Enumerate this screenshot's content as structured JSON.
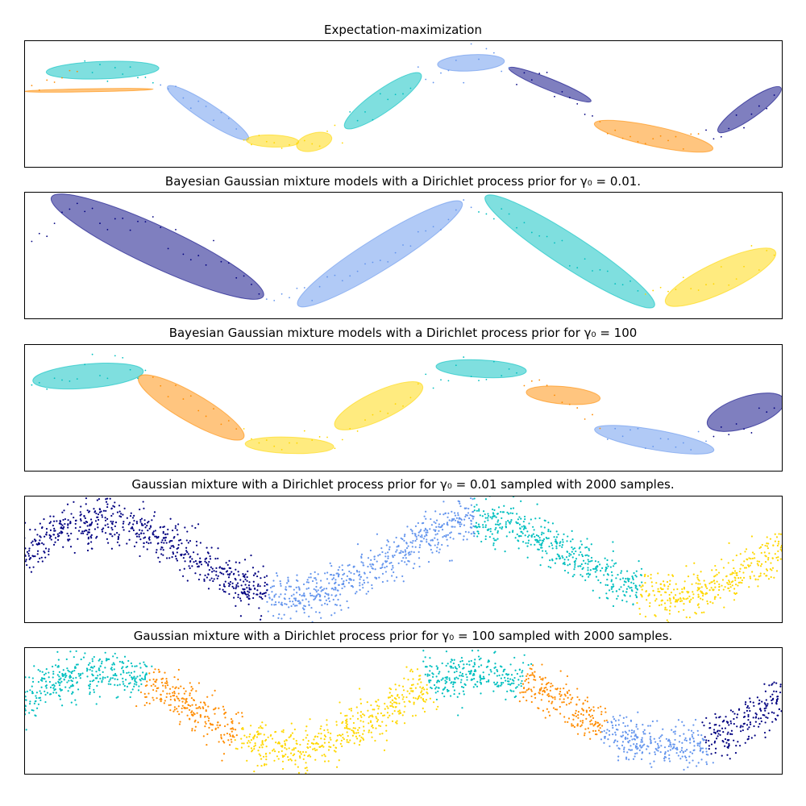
{
  "chart_data": [
    {
      "type": "scatter",
      "title": "Expectation-maximization",
      "xlim": [
        -6,
        6.566
      ],
      "ylim": [
        -5,
        5
      ],
      "grid": false,
      "ticks": false,
      "n_samples": 100,
      "ellipses": [
        {
          "center": [
            -4.7,
            2.64
          ],
          "width": 1.87,
          "height": 0.29,
          "angle": -2,
          "color": "#00bfbf"
        },
        {
          "center": [
            -4.93,
            1.05
          ],
          "width": 2.14,
          "height": 0.05,
          "angle": -1,
          "color": "#ff8c00"
        },
        {
          "center": [
            -2.95,
            -0.73
          ],
          "width": 1.6,
          "height": 0.29,
          "angle": 33,
          "color": "#6495ed"
        },
        {
          "center": [
            -1.88,
            -2.96
          ],
          "width": 0.87,
          "height": 0.2,
          "angle": 2,
          "color": "#ffd700"
        },
        {
          "center": [
            -1.19,
            -3.03
          ],
          "width": 0.6,
          "height": 0.29,
          "angle": -15,
          "color": "#ffd700"
        },
        {
          "center": [
            -0.05,
            0.22
          ],
          "width": 1.54,
          "height": 0.37,
          "angle": -35,
          "color": "#00bfbf"
        },
        {
          "center": [
            1.41,
            3.22
          ],
          "width": 1.11,
          "height": 0.27,
          "angle": -3,
          "color": "#6495ed"
        },
        {
          "center": [
            2.72,
            1.5
          ],
          "width": 1.47,
          "height": 0.19,
          "angle": 22,
          "color": "#000080"
        },
        {
          "center": [
            4.44,
            -2.58
          ],
          "width": 2.01,
          "height": 0.33,
          "angle": 12,
          "color": "#ff8c00"
        },
        {
          "center": [
            6.03,
            -0.48
          ],
          "width": 1.27,
          "height": 0.29,
          "angle": -35,
          "color": "#000080"
        }
      ]
    },
    {
      "type": "scatter",
      "title": "Bayesian Gaussian mixture models with a Dirichlet process prior for γ₀ = 0.01.",
      "xlim": [
        -6,
        6.566
      ],
      "ylim": [
        -5,
        5
      ],
      "grid": false,
      "ticks": false,
      "n_samples": 100,
      "ellipses": [
        {
          "center": [
            -3.79,
            0.67
          ],
          "width": 3.88,
          "height": 0.67,
          "angle": 25,
          "color": "#000080"
        },
        {
          "center": [
            -0.1,
            0.1
          ],
          "width": 3.21,
          "height": 0.53,
          "angle": -32,
          "color": "#6495ed"
        },
        {
          "center": [
            3.05,
            0.29
          ],
          "width": 3.34,
          "height": 0.53,
          "angle": 33,
          "color": "#00bfbf"
        },
        {
          "center": [
            5.55,
            -1.75
          ],
          "width": 2.01,
          "height": 0.51,
          "angle": -25,
          "color": "#ffd700"
        }
      ]
    },
    {
      "type": "scatter",
      "title": "Bayesian Gaussian mixture models with a Dirichlet process prior for γ₀ = 100",
      "xlim": [
        -6,
        6.566
      ],
      "ylim": [
        -5,
        5
      ],
      "grid": false,
      "ticks": false,
      "n_samples": 100,
      "ellipses": [
        {
          "center": [
            -4.94,
            2.48
          ],
          "width": 1.84,
          "height": 0.4,
          "angle": -5,
          "color": "#00bfbf"
        },
        {
          "center": [
            -3.23,
            0.0
          ],
          "width": 2.01,
          "height": 0.47,
          "angle": 30,
          "color": "#ff8c00"
        },
        {
          "center": [
            -1.6,
            -2.99
          ],
          "width": 1.47,
          "height": 0.27,
          "angle": 2,
          "color": "#ffd700"
        },
        {
          "center": [
            -0.12,
            0.13
          ],
          "width": 1.6,
          "height": 0.47,
          "angle": -25,
          "color": "#ffd700"
        },
        {
          "center": [
            1.58,
            3.06
          ],
          "width": 1.5,
          "height": 0.29,
          "angle": 3,
          "color": "#00bfbf"
        },
        {
          "center": [
            2.94,
            0.96
          ],
          "width": 1.23,
          "height": 0.29,
          "angle": 5,
          "color": "#ff8c00"
        },
        {
          "center": [
            4.45,
            -2.55
          ],
          "width": 2.01,
          "height": 0.33,
          "angle": 10,
          "color": "#6495ed"
        },
        {
          "center": [
            5.97,
            -0.38
          ],
          "width": 1.34,
          "height": 0.51,
          "angle": -18,
          "color": "#000080"
        }
      ]
    },
    {
      "type": "scatter",
      "title": "Gaussian mixture with a Dirichlet process prior for γ₀ = 0.01 sampled with 2000 samples.",
      "xlim": [
        -6,
        6.566
      ],
      "ylim": [
        -5,
        5
      ],
      "grid": false,
      "ticks": false,
      "n_samples": 2000,
      "component_colors": [
        "#000080",
        "#6495ed",
        "#00bfbf",
        "#ffd700"
      ]
    },
    {
      "type": "scatter",
      "title": "Gaussian mixture with a Dirichlet process prior for γ₀ = 100 sampled with 2000 samples.",
      "xlim": [
        -6,
        6.566
      ],
      "ylim": [
        -5,
        5
      ],
      "grid": false,
      "ticks": false,
      "n_samples": 2000,
      "component_colors": [
        "#00bfbf",
        "#ff8c00",
        "#ffd700",
        "#6495ed",
        "#000080"
      ]
    }
  ]
}
